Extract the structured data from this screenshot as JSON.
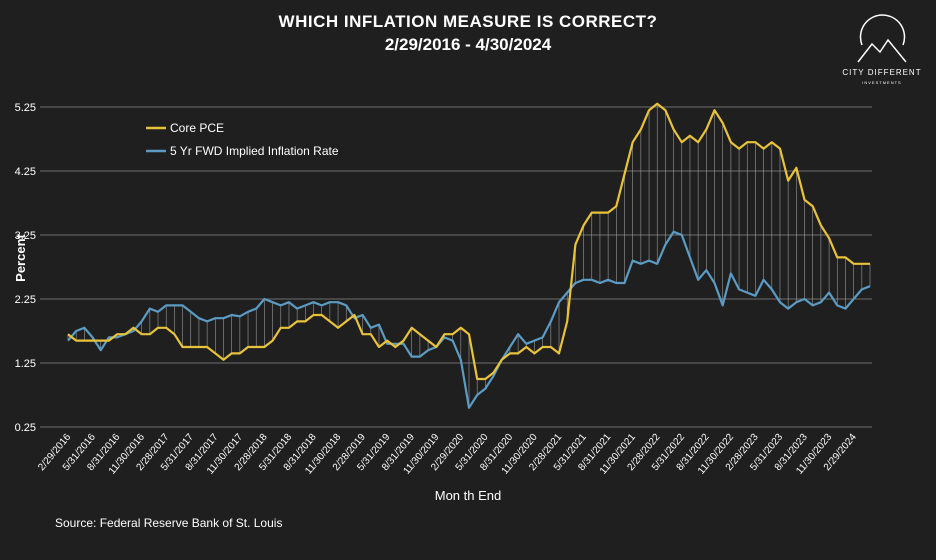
{
  "chart_data": {
    "type": "line",
    "title": "WHICH INFLATION MEASURE IS CORRECT?",
    "subtitle": "2/29/2016 - 4/30/2024",
    "logo_text": "CITY DIFFERENT",
    "logo_subtext": "INVESTMENTS",
    "y_label": "Percent",
    "x_label": "Mon th End",
    "source": "Source: Federal Reserve Bank of St. Louis",
    "categories": [
      "2/29/2016",
      null,
      null,
      "5/31/2016",
      null,
      null,
      "8/31/2016",
      null,
      null,
      "11/30/2016",
      null,
      null,
      "2/28/2017",
      null,
      null,
      "5/31/2017",
      null,
      null,
      "8/31/2017",
      null,
      null,
      "11/30/2017",
      null,
      null,
      "2/28/2018",
      null,
      null,
      "5/31/2018",
      null,
      null,
      "8/31/2018",
      null,
      null,
      "11/30/2018",
      null,
      null,
      "2/28/2019",
      null,
      null,
      "5/31/2019",
      null,
      null,
      "8/31/2019",
      null,
      null,
      "11/30/2019",
      null,
      null,
      "2/29/2020",
      null,
      null,
      "5/31/2020",
      null,
      null,
      "8/31/2020",
      null,
      null,
      "11/30/2020",
      null,
      null,
      "2/28/2021",
      null,
      null,
      "5/31/2021",
      null,
      null,
      "8/31/2021",
      null,
      null,
      "11/30/2021",
      null,
      null,
      "2/28/2022",
      null,
      null,
      "5/31/2022",
      null,
      null,
      "8/31/2022",
      null,
      null,
      "11/30/2022",
      null,
      null,
      "2/28/2023",
      null,
      null,
      "5/31/2023",
      null,
      null,
      "8/31/2023",
      null,
      null,
      "11/30/2023",
      null,
      null,
      "2/29/2024",
      null,
      null
    ],
    "series": [
      {
        "name": "Core PCE",
        "color": "#e8c33a",
        "values": [
          1.7,
          1.6,
          1.6,
          1.6,
          1.6,
          1.6,
          1.7,
          1.7,
          1.8,
          1.7,
          1.7,
          1.8,
          1.8,
          1.7,
          1.5,
          1.5,
          1.5,
          1.5,
          1.4,
          1.3,
          1.4,
          1.4,
          1.5,
          1.5,
          1.5,
          1.6,
          1.8,
          1.8,
          1.9,
          1.9,
          2.0,
          2.0,
          1.9,
          1.8,
          1.9,
          2.0,
          1.7,
          1.7,
          1.5,
          1.6,
          1.5,
          1.6,
          1.8,
          1.7,
          1.6,
          1.5,
          1.7,
          1.7,
          1.8,
          1.7,
          1.0,
          1.0,
          1.1,
          1.3,
          1.4,
          1.4,
          1.5,
          1.4,
          1.5,
          1.5,
          1.4,
          1.9,
          3.1,
          3.4,
          3.6,
          3.6,
          3.6,
          3.7,
          4.2,
          4.7,
          4.9,
          5.2,
          5.3,
          5.2,
          4.9,
          4.7,
          4.8,
          4.7,
          4.9,
          5.2,
          5.0,
          4.7,
          4.6,
          4.7,
          4.7,
          4.6,
          4.7,
          4.6,
          4.1,
          4.3,
          3.8,
          3.7,
          3.4,
          3.2,
          2.9,
          2.9,
          2.8,
          2.8,
          2.8
        ]
      },
      {
        "name": "5 Yr FWD Implied Inflation Rate",
        "color": "#5b9bc4",
        "values": [
          1.6,
          1.75,
          1.8,
          1.65,
          1.45,
          1.65,
          1.65,
          1.7,
          1.75,
          1.9,
          2.1,
          2.05,
          2.15,
          2.15,
          2.15,
          2.05,
          1.95,
          1.9,
          1.95,
          1.95,
          2.0,
          1.98,
          2.05,
          2.1,
          2.25,
          2.2,
          2.15,
          2.2,
          2.1,
          2.15,
          2.2,
          2.15,
          2.2,
          2.2,
          2.15,
          1.95,
          2.0,
          1.8,
          1.85,
          1.55,
          1.55,
          1.55,
          1.35,
          1.35,
          1.45,
          1.5,
          1.65,
          1.6,
          1.3,
          0.55,
          0.75,
          0.85,
          1.05,
          1.3,
          1.5,
          1.7,
          1.55,
          1.6,
          1.65,
          1.9,
          2.2,
          2.35,
          2.5,
          2.55,
          2.55,
          2.5,
          2.55,
          2.5,
          2.5,
          2.85,
          2.8,
          2.85,
          2.8,
          3.1,
          3.3,
          3.25,
          2.9,
          2.55,
          2.7,
          2.5,
          2.15,
          2.65,
          2.4,
          2.35,
          2.3,
          2.55,
          2.4,
          2.2,
          2.1,
          2.2,
          2.25,
          2.15,
          2.2,
          2.35,
          2.15,
          2.1,
          2.25,
          2.4,
          2.45
        ]
      }
    ],
    "ylim": [
      0.25,
      5.35
    ],
    "yticks": [
      0.25,
      1.25,
      2.25,
      3.25,
      4.25,
      5.25
    ],
    "grid": true,
    "legend": "upper left"
  }
}
